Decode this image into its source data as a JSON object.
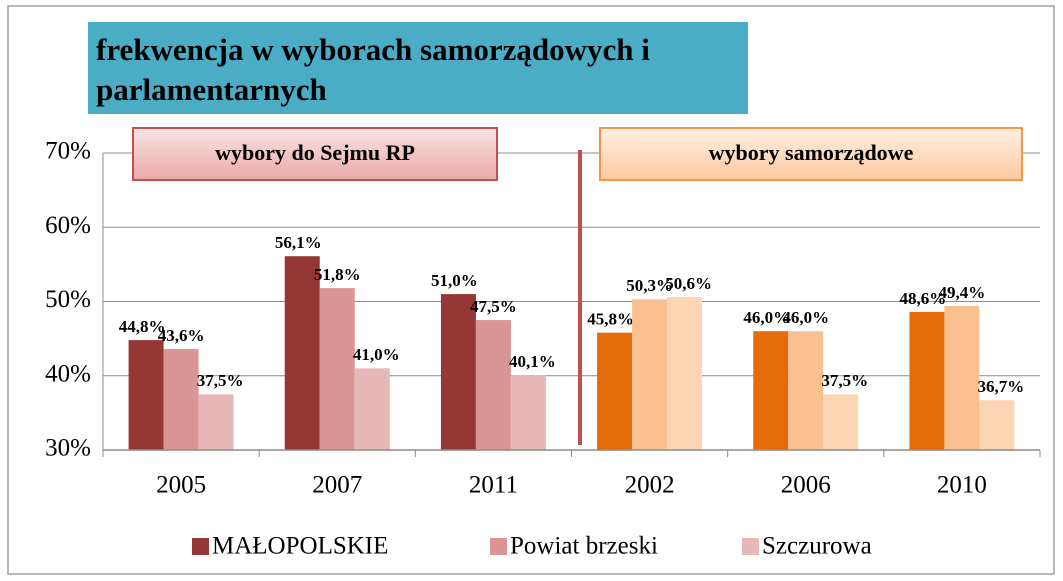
{
  "chart_data": {
    "type": "bar",
    "title": "frekwencja w wyborach samorządowych i parlamentarnych",
    "categories": [
      "2005",
      "2007",
      "2011",
      "2002",
      "2006",
      "2010"
    ],
    "series": [
      {
        "name": "MAŁOPOLSKIE",
        "colors": [
          "#953735",
          "#953735",
          "#953735",
          "#e46c0a",
          "#e46c0a",
          "#e46c0a"
        ],
        "values": [
          44.8,
          56.1,
          51.0,
          45.8,
          46.0,
          48.6
        ],
        "value_labels": [
          "44,8%",
          "56,1%",
          "51,0%",
          "45,8%",
          "46,0%",
          "48,6%"
        ]
      },
      {
        "name": "Powiat brzeski",
        "colors": [
          "#d99694",
          "#d99694",
          "#d99694",
          "#fac090",
          "#fac090",
          "#fac090"
        ],
        "values": [
          43.6,
          51.8,
          47.5,
          50.3,
          46.0,
          49.4
        ],
        "value_labels": [
          "43,6%",
          "51,8%",
          "47,5%",
          "50,3%",
          "46,0%",
          "49,4%"
        ]
      },
      {
        "name": "Szczurowa",
        "colors": [
          "#e6b9b8",
          "#e6b9b8",
          "#e6b9b8",
          "#fcd5b5",
          "#fcd5b5",
          "#fcd5b5"
        ],
        "values": [
          37.5,
          41.0,
          40.1,
          50.6,
          37.5,
          36.7
        ],
        "value_labels": [
          "37,5%",
          "41,0%",
          "40,1%",
          "50,6%",
          "37,5%",
          "36,7%"
        ]
      }
    ],
    "ylim": [
      30,
      70
    ],
    "yticks": [
      {
        "value": 30,
        "label": "30%"
      },
      {
        "value": 40,
        "label": "40%"
      },
      {
        "value": 50,
        "label": "50%"
      },
      {
        "value": 60,
        "label": "60%"
      },
      {
        "value": 70,
        "label": "70%"
      }
    ],
    "grid": true,
    "legend": "bottom",
    "annotations": [
      "wybory do Sejmu RP",
      "wybory samorządowe"
    ]
  }
}
